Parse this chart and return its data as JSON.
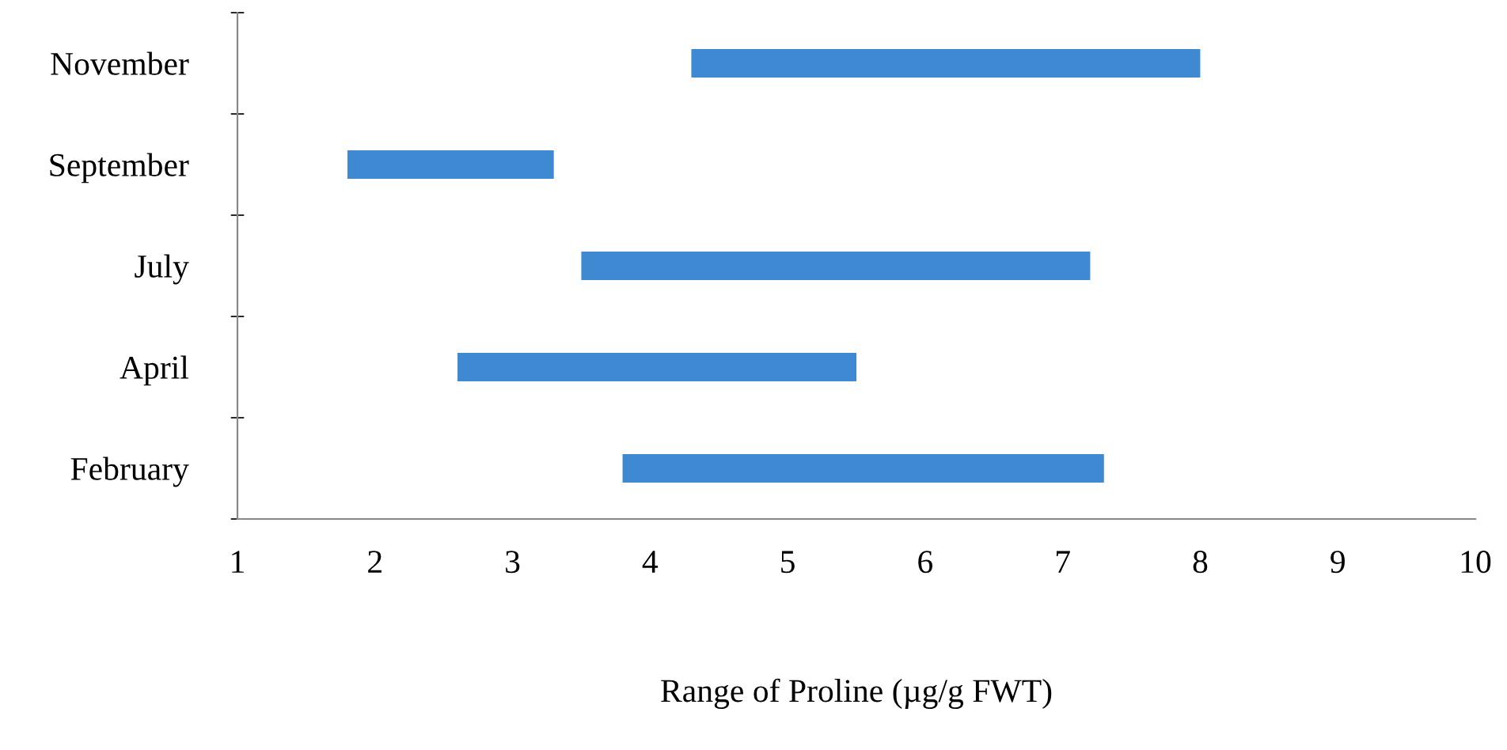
{
  "chart_data": {
    "type": "bar",
    "orientation": "horizontal",
    "xlabel": "Range of Proline (µg/g FWT)",
    "categories": [
      "November",
      "September",
      "July",
      "April",
      "February"
    ],
    "base": [
      4.3,
      1.8,
      3.5,
      2.6,
      3.8
    ],
    "values": [
      3.7,
      1.5,
      3.7,
      2.9,
      3.5
    ],
    "color": "#3f88d2",
    "xlim": [
      1,
      10
    ],
    "xticks": [
      1,
      2,
      3,
      4,
      5,
      6,
      7,
      8,
      9,
      10
    ],
    "grid": false,
    "legend": false
  }
}
